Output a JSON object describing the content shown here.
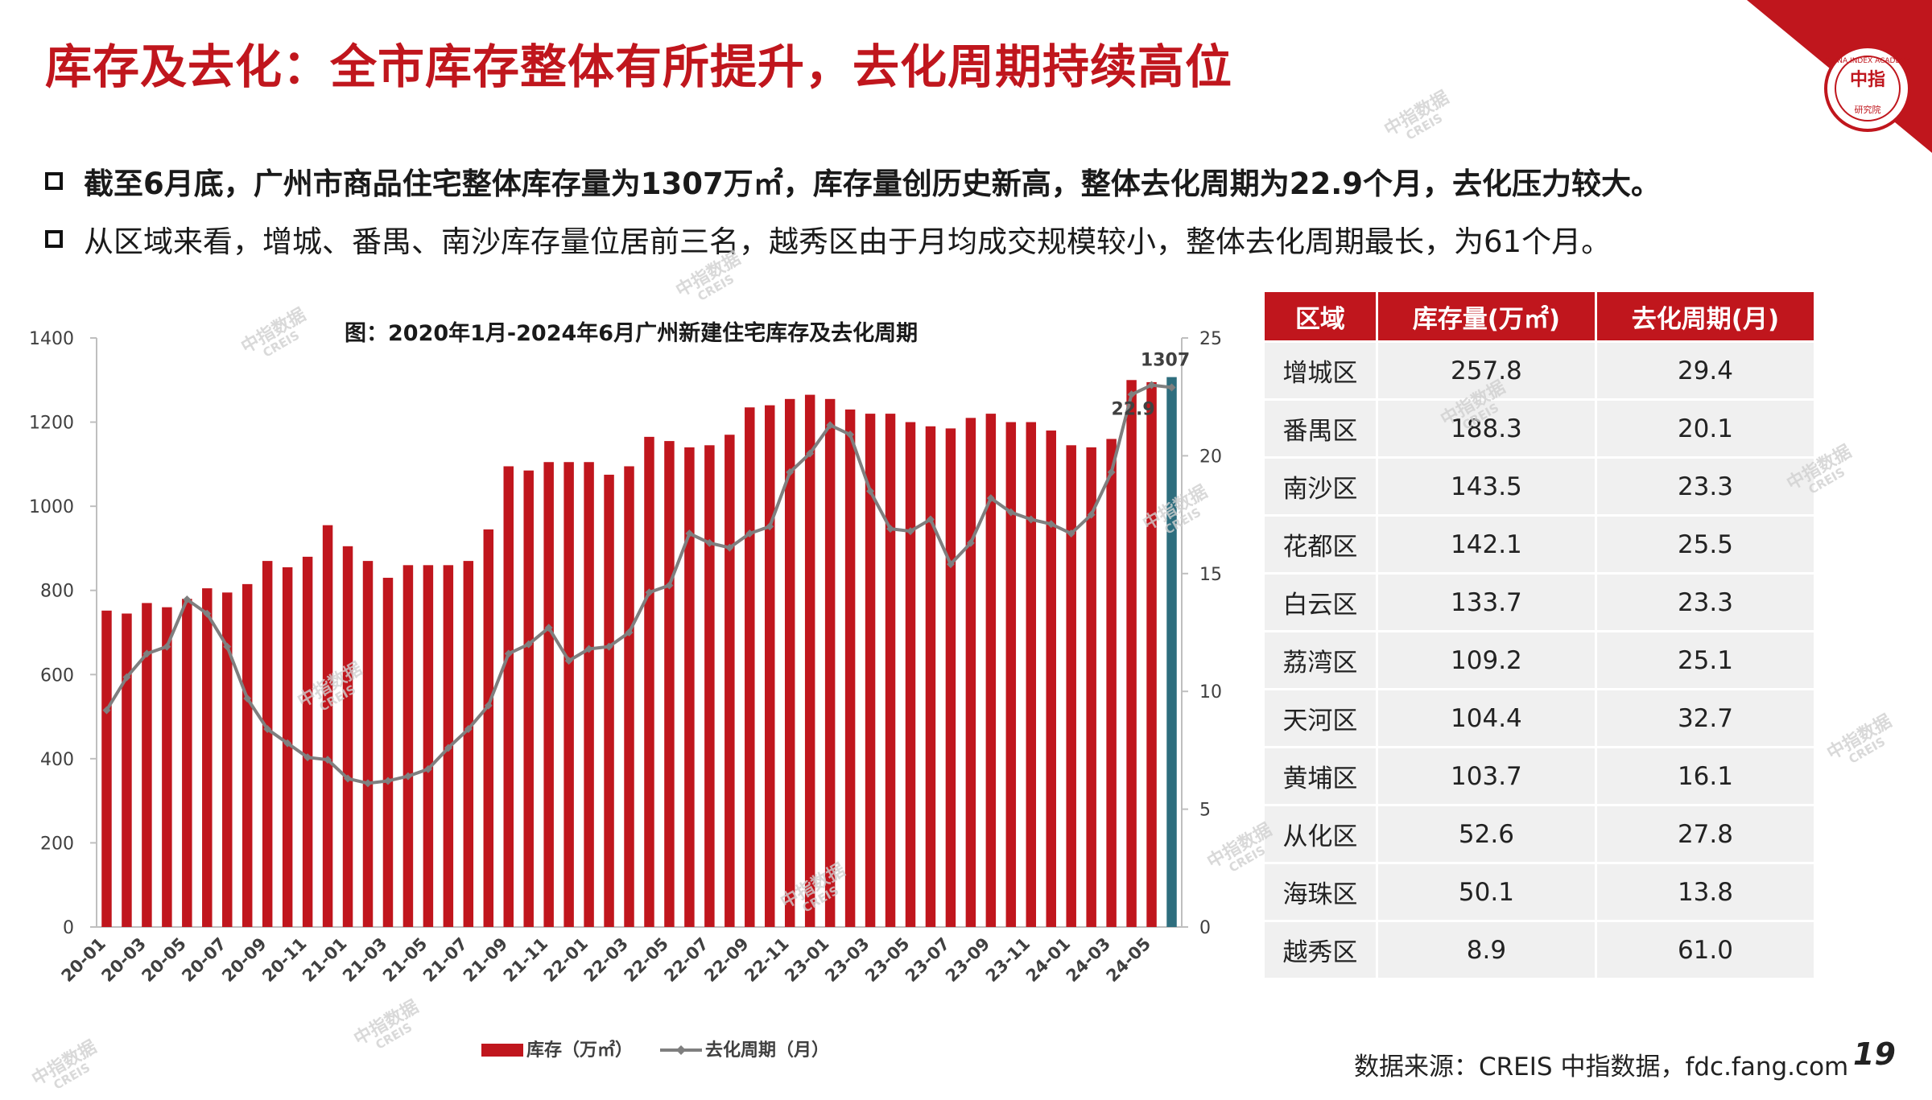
{
  "page": {
    "title": "库存及去化：全市库存整体有所提升，去化周期持续高位",
    "bullets": [
      "截至6月底，广州市商品住宅整体库存量为1307万㎡，库存量创历史新高，整体去化周期为22.9个月，去化压力较大。",
      "从区域来看，增城、番禺、南沙库存量位居前三名，越秀区由于月均成交规模较小，整体去化周期最长，为61个月。"
    ],
    "source": "数据来源：CREIS 中指数据，fdc.fang.com",
    "page_number": "19",
    "watermark": "中指数据",
    "watermark_sub": "CREIS",
    "logo_text": "中指",
    "logo_ring_text": "CHINA INDEX ACADEMY",
    "logo_sub": "研究院"
  },
  "colors": {
    "brand_red": "#c0161d",
    "bar_red": "#c0161d",
    "last_bar": "#2e6e7e",
    "line_gray": "#7f7f7f"
  },
  "chart_data": {
    "type": "bar",
    "title": "图：2020年1月-2024年6月广州新建住宅库存及去化周期",
    "categories": [
      "20-01",
      "20-02",
      "20-03",
      "20-04",
      "20-05",
      "20-06",
      "20-07",
      "20-08",
      "20-09",
      "20-10",
      "20-11",
      "20-12",
      "21-01",
      "21-02",
      "21-03",
      "21-04",
      "21-05",
      "21-06",
      "21-07",
      "21-08",
      "21-09",
      "21-10",
      "21-11",
      "21-12",
      "22-01",
      "22-02",
      "22-03",
      "22-04",
      "22-05",
      "22-06",
      "22-07",
      "22-08",
      "22-09",
      "22-10",
      "22-11",
      "22-12",
      "23-01",
      "23-02",
      "23-03",
      "23-04",
      "23-05",
      "23-06",
      "23-07",
      "23-08",
      "23-09",
      "23-10",
      "23-11",
      "23-12",
      "24-01",
      "24-02",
      "24-03",
      "24-04",
      "24-05",
      "24-06"
    ],
    "x_tick_labels": [
      "20-01",
      "20-03",
      "20-05",
      "20-07",
      "20-09",
      "20-11",
      "21-01",
      "21-03",
      "21-05",
      "21-07",
      "21-09",
      "21-11",
      "22-01",
      "22-03",
      "22-05",
      "22-07",
      "22-09",
      "22-11",
      "23-01",
      "23-03",
      "23-05",
      "23-07",
      "23-09",
      "23-11",
      "24-01",
      "24-03",
      "24-05"
    ],
    "series": [
      {
        "name": "库存（万㎡）",
        "axis": "left",
        "kind": "bar",
        "values": [
          752,
          745,
          770,
          760,
          780,
          805,
          795,
          815,
          870,
          855,
          880,
          955,
          905,
          870,
          830,
          860,
          860,
          860,
          870,
          945,
          1095,
          1085,
          1105,
          1105,
          1105,
          1075,
          1095,
          1165,
          1155,
          1140,
          1145,
          1170,
          1235,
          1240,
          1255,
          1265,
          1255,
          1230,
          1220,
          1220,
          1200,
          1190,
          1185,
          1210,
          1220,
          1200,
          1200,
          1180,
          1145,
          1140,
          1160,
          1300,
          1295,
          1307
        ]
      },
      {
        "name": "去化周期（月）",
        "axis": "right",
        "kind": "line",
        "values": [
          9.2,
          10.6,
          11.6,
          11.9,
          13.9,
          13.3,
          11.9,
          9.7,
          8.4,
          7.8,
          7.2,
          7.1,
          6.3,
          6.1,
          6.2,
          6.4,
          6.7,
          7.6,
          8.4,
          9.4,
          11.6,
          12.0,
          12.7,
          11.3,
          11.8,
          11.9,
          12.5,
          14.2,
          14.5,
          16.7,
          16.3,
          16.1,
          16.7,
          17.0,
          19.3,
          20.1,
          21.3,
          20.9,
          18.5,
          16.9,
          16.8,
          17.3,
          15.4,
          16.3,
          18.2,
          17.6,
          17.3,
          17.1,
          16.7,
          17.5,
          19.3,
          22.6,
          23.0,
          22.9
        ]
      }
    ],
    "last_value_label": "1307",
    "last_line_label": "22.9",
    "ylim_left": [
      0,
      1400
    ],
    "yticks_left": [
      "0",
      "200",
      "400",
      "600",
      "800",
      "1000",
      "1200",
      "1400"
    ],
    "ylim_right": [
      0,
      25
    ],
    "yticks_right": [
      "0",
      "5",
      "10",
      "15",
      "20",
      "25"
    ],
    "legend": [
      "库存（万㎡）",
      "去化周期（月）"
    ],
    "legend_position": "bottom"
  },
  "table": {
    "headers": [
      "区域",
      "库存量(万㎡)",
      "去化周期(月)"
    ],
    "rows": [
      [
        "增城区",
        "257.8",
        "29.4"
      ],
      [
        "番禺区",
        "188.3",
        "20.1"
      ],
      [
        "南沙区",
        "143.5",
        "23.3"
      ],
      [
        "花都区",
        "142.1",
        "25.5"
      ],
      [
        "白云区",
        "133.7",
        "23.3"
      ],
      [
        "荔湾区",
        "109.2",
        "25.1"
      ],
      [
        "天河区",
        "104.4",
        "32.7"
      ],
      [
        "黄埔区",
        "103.7",
        "16.1"
      ],
      [
        "从化区",
        "52.6",
        "27.8"
      ],
      [
        "海珠区",
        "50.1",
        "13.8"
      ],
      [
        "越秀区",
        "8.9",
        "61.0"
      ]
    ]
  }
}
